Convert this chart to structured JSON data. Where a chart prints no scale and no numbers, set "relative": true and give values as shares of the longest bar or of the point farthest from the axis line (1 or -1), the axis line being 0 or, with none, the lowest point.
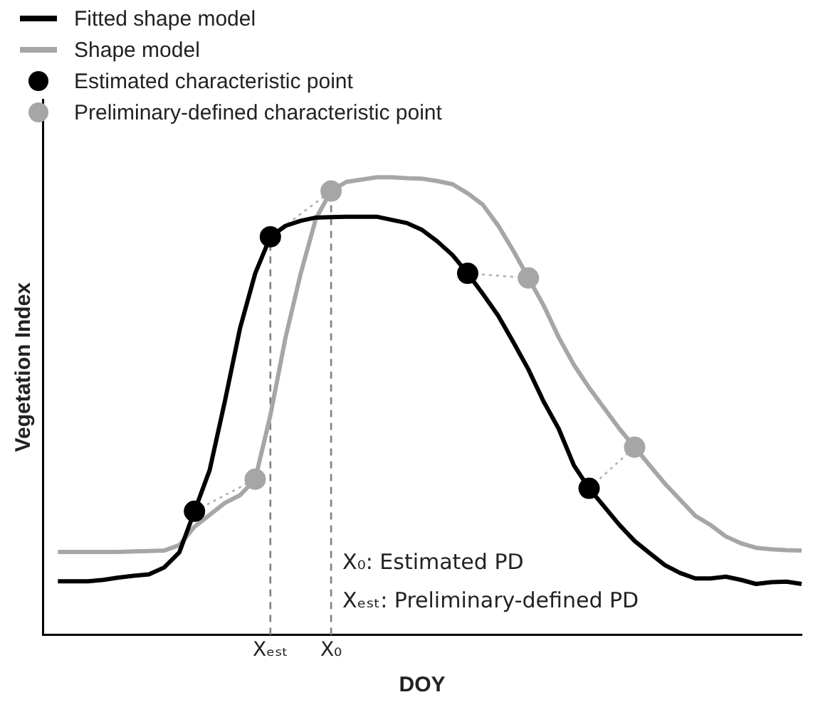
{
  "chart_data": {
    "type": "line",
    "relative": true,
    "xlabel": "DOY",
    "ylabel": "Vegetation Index",
    "legend": "top left",
    "marker": "none",
    "categories": [
      null,
      null,
      null,
      null,
      null,
      null,
      null,
      null,
      null,
      null,
      null,
      null,
      null,
      null,
      null,
      "Xₑₛₜ",
      null,
      null,
      null,
      "X₀",
      null,
      null,
      null,
      null,
      null,
      null,
      null,
      null,
      null,
      null,
      null,
      null,
      null,
      null,
      null,
      null,
      null,
      null,
      null,
      null,
      null,
      null,
      null,
      null,
      null,
      null,
      null,
      null,
      null,
      null,
      null
    ],
    "annotations": [
      "X₀: Estimated PD",
      "Xₑₛₜ: Preliminary-defined PD"
    ],
    "ref_lines": [
      {
        "axis": "x",
        "value": "Xₑₛₜ",
        "color": "#808080",
        "line_style": "dashed"
      },
      {
        "axis": "x",
        "value": "X₀",
        "color": "#808080",
        "line_style": "dashed"
      }
    ],
    "series": [
      {
        "name": "Fitted shape model",
        "color": "#000000",
        "values": [
          null,
          0.117,
          0.117,
          0.117,
          0.12,
          0.125,
          0.129,
          0.132,
          0.147,
          0.18,
          0.27,
          0.36,
          0.51,
          0.67,
          0.79,
          0.87,
          0.894,
          0.905,
          0.912,
          0.913,
          0.914,
          0.914,
          0.914,
          0.907,
          0.9,
          0.885,
          0.86,
          0.83,
          0.79,
          0.745,
          0.698,
          0.64,
          0.58,
          0.51,
          0.45,
          0.37,
          0.32,
          0.28,
          0.24,
          0.205,
          0.178,
          0.152,
          0.135,
          0.123,
          0.123,
          0.127,
          0.12,
          0.111,
          0.115,
          0.116,
          0.111
        ]
      },
      {
        "name": "Shape model",
        "color": "#a6a6a6",
        "values": [
          null,
          0.181,
          0.181,
          0.181,
          0.181,
          0.181,
          0.182,
          0.183,
          0.184,
          0.196,
          0.236,
          0.262,
          0.288,
          0.305,
          0.34,
          0.48,
          0.65,
          0.79,
          0.91,
          0.97,
          0.99,
          0.995,
          1,
          1,
          0.998,
          0.997,
          0.992,
          0.985,
          0.965,
          0.94,
          0.895,
          0.84,
          0.78,
          0.72,
          0.65,
          0.59,
          0.54,
          0.495,
          0.45,
          0.41,
          0.37,
          0.33,
          0.295,
          0.26,
          0.24,
          0.215,
          0.2,
          0.19,
          0.187,
          0.185,
          0.184
        ]
      },
      {
        "color": "#b0b0b0",
        "line_style": "dotted",
        "values": [
          null,
          null,
          null,
          null,
          null,
          null,
          null,
          null,
          null,
          null,
          0.27,
          0.2875,
          0.305,
          0.3225,
          0.34,
          null,
          null,
          null,
          null,
          null,
          null,
          null,
          null,
          null,
          null,
          null,
          null,
          null,
          0.79,
          0.7875,
          0.785,
          0.7825,
          0.78,
          null,
          null,
          null,
          null,
          null,
          null,
          null,
          null,
          null,
          null,
          null,
          null,
          null,
          null,
          null,
          null,
          null,
          null
        ]
      },
      {
        "color": "#b0b0b0",
        "line_style": "dotted",
        "values": [
          null,
          null,
          null,
          null,
          null,
          null,
          null,
          null,
          null,
          null,
          null,
          null,
          null,
          null,
          null,
          0.87,
          0.895,
          0.92,
          0.945,
          0.97,
          null,
          null,
          null,
          null,
          null,
          null,
          null,
          null,
          null,
          null,
          null,
          null,
          null,
          null,
          null,
          null,
          0.32,
          0.35,
          0.38,
          0.41,
          null,
          null,
          null,
          null,
          null,
          null,
          null,
          null,
          null,
          null,
          null
        ]
      },
      {
        "name": "Estimated characteristic point",
        "type": "scatter",
        "marker": "circle",
        "color": "#000000",
        "values": [
          null,
          null,
          null,
          null,
          null,
          null,
          null,
          null,
          null,
          null,
          0.27,
          null,
          null,
          null,
          null,
          0.87,
          null,
          null,
          null,
          null,
          null,
          null,
          null,
          null,
          null,
          null,
          null,
          null,
          0.79,
          null,
          null,
          null,
          null,
          null,
          null,
          null,
          0.32,
          null,
          null,
          null,
          null,
          null,
          null,
          null,
          null,
          null,
          null,
          null,
          null,
          null,
          null
        ]
      },
      {
        "name": "Preliminary-defined characteristic point",
        "type": "scatter",
        "marker": "circle",
        "color": "#a6a6a6",
        "values": [
          null,
          null,
          null,
          null,
          null,
          null,
          null,
          null,
          null,
          null,
          null,
          null,
          null,
          null,
          0.34,
          null,
          null,
          null,
          null,
          0.97,
          null,
          null,
          null,
          null,
          null,
          null,
          null,
          null,
          null,
          null,
          null,
          null,
          0.78,
          null,
          null,
          null,
          null,
          null,
          null,
          0.41,
          null,
          null,
          null,
          null,
          null,
          null,
          null,
          null,
          null,
          null,
          null
        ]
      }
    ]
  }
}
